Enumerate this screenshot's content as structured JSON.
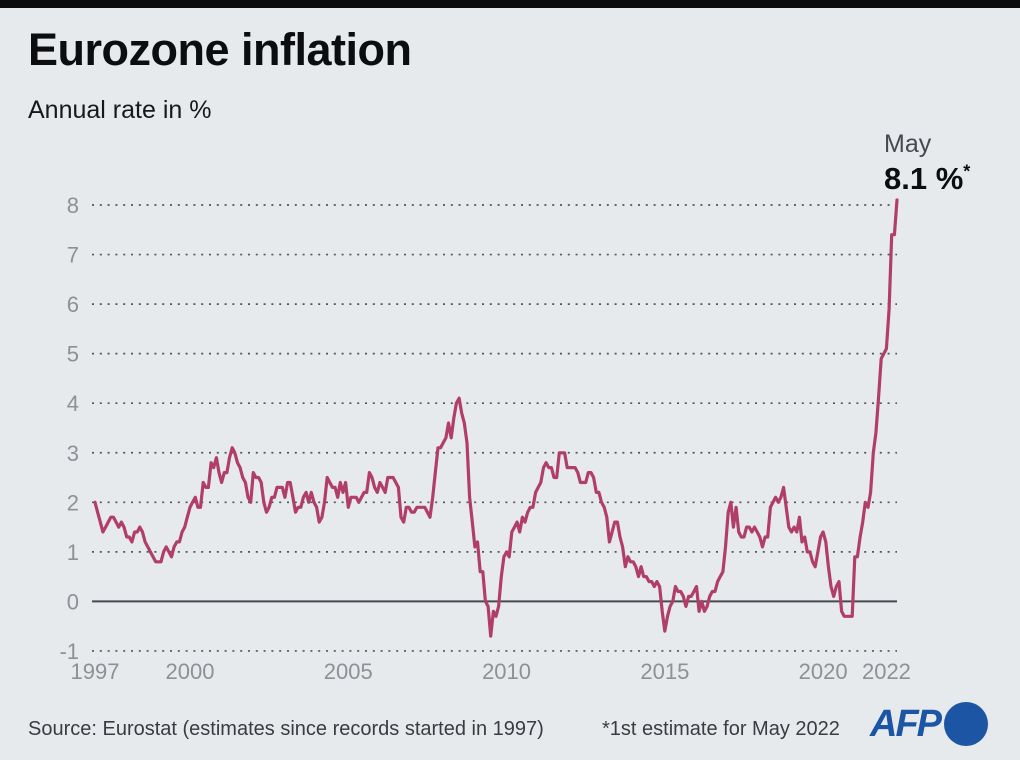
{
  "header": {
    "title": "Eurozone inflation",
    "subtitle": "Annual rate in %"
  },
  "annotation": {
    "month": "May",
    "value": "8.1 %",
    "asterisk": "*"
  },
  "footer": {
    "source": "Source: Eurostat (estimates since records started in 1997)",
    "note": "*1st estimate for May 2022",
    "brand": "AFP"
  },
  "colors": {
    "background": "#e7eaed",
    "top_bar": "#0b0c0d",
    "line": "#b03e68",
    "grid": "#515458",
    "tick_labels": "#8d9195",
    "afp_blue": "#1c55a4"
  },
  "chart_data": {
    "type": "line",
    "title": "Eurozone inflation",
    "ylabel": "Annual rate in %",
    "frequency": "monthly",
    "start": "1997-01",
    "end": "2022-05",
    "x_tick_years": [
      1997,
      2000,
      2005,
      2010,
      2015,
      2020,
      2022
    ],
    "y_ticks": [
      -1,
      0,
      1,
      2,
      3,
      4,
      5,
      6,
      7,
      8
    ],
    "ylim": [
      -1.3,
      8.6
    ],
    "grid": "dotted-horizontal",
    "zero_line": true,
    "legend": "none",
    "line_color": "#b03e68",
    "peak_annotation": {
      "label": "May",
      "value": 8.1,
      "footnote": "*1st estimate for May 2022"
    },
    "series": [
      {
        "name": "Eurozone annual inflation rate (%)",
        "values": [
          2.0,
          1.8,
          1.6,
          1.4,
          1.5,
          1.6,
          1.7,
          1.7,
          1.6,
          1.5,
          1.6,
          1.5,
          1.3,
          1.3,
          1.2,
          1.4,
          1.4,
          1.5,
          1.4,
          1.2,
          1.1,
          1.0,
          0.9,
          0.8,
          0.8,
          0.8,
          1.0,
          1.1,
          1.0,
          0.9,
          1.1,
          1.2,
          1.2,
          1.4,
          1.5,
          1.7,
          1.9,
          2.0,
          2.1,
          1.9,
          1.9,
          2.4,
          2.3,
          2.3,
          2.8,
          2.7,
          2.9,
          2.6,
          2.4,
          2.6,
          2.6,
          2.9,
          3.1,
          3.0,
          2.8,
          2.7,
          2.5,
          2.4,
          2.1,
          2.0,
          2.6,
          2.5,
          2.5,
          2.4,
          2.0,
          1.8,
          1.9,
          2.1,
          2.1,
          2.3,
          2.3,
          2.3,
          2.1,
          2.4,
          2.4,
          2.1,
          1.8,
          1.9,
          1.9,
          2.1,
          2.2,
          2.0,
          2.2,
          2.0,
          1.9,
          1.6,
          1.7,
          2.0,
          2.5,
          2.4,
          2.3,
          2.3,
          2.1,
          2.4,
          2.2,
          2.4,
          1.9,
          2.1,
          2.1,
          2.1,
          2.0,
          2.1,
          2.2,
          2.2,
          2.6,
          2.5,
          2.3,
          2.2,
          2.4,
          2.3,
          2.2,
          2.5,
          2.5,
          2.5,
          2.4,
          2.3,
          1.7,
          1.6,
          1.9,
          1.9,
          1.8,
          1.8,
          1.9,
          1.9,
          1.9,
          1.9,
          1.8,
          1.7,
          2.1,
          2.6,
          3.1,
          3.1,
          3.2,
          3.3,
          3.6,
          3.3,
          3.7,
          4.0,
          4.1,
          3.8,
          3.6,
          3.2,
          2.1,
          1.6,
          1.1,
          1.2,
          0.6,
          0.6,
          0.0,
          -0.1,
          -0.7,
          -0.2,
          -0.3,
          -0.1,
          0.5,
          0.9,
          1.0,
          0.9,
          1.4,
          1.5,
          1.6,
          1.4,
          1.7,
          1.6,
          1.8,
          1.9,
          1.9,
          2.2,
          2.3,
          2.4,
          2.7,
          2.8,
          2.7,
          2.7,
          2.5,
          2.5,
          3.0,
          3.0,
          3.0,
          2.7,
          2.7,
          2.7,
          2.7,
          2.6,
          2.4,
          2.4,
          2.4,
          2.6,
          2.6,
          2.5,
          2.2,
          2.2,
          2.0,
          1.9,
          1.7,
          1.2,
          1.4,
          1.6,
          1.6,
          1.3,
          1.1,
          0.7,
          0.9,
          0.8,
          0.8,
          0.7,
          0.5,
          0.7,
          0.5,
          0.5,
          0.4,
          0.4,
          0.3,
          0.4,
          0.3,
          -0.2,
          -0.6,
          -0.3,
          -0.1,
          0.0,
          0.3,
          0.2,
          0.2,
          0.1,
          -0.1,
          0.1,
          0.1,
          0.2,
          0.3,
          -0.2,
          0.0,
          -0.2,
          -0.1,
          0.1,
          0.2,
          0.2,
          0.4,
          0.5,
          0.6,
          1.1,
          1.8,
          2.0,
          1.5,
          1.9,
          1.4,
          1.3,
          1.3,
          1.5,
          1.5,
          1.4,
          1.5,
          1.4,
          1.3,
          1.1,
          1.3,
          1.3,
          1.9,
          2.0,
          2.1,
          2.0,
          2.1,
          2.3,
          1.9,
          1.5,
          1.4,
          1.5,
          1.4,
          1.7,
          1.2,
          1.3,
          1.0,
          1.0,
          0.8,
          0.7,
          1.0,
          1.3,
          1.4,
          1.2,
          0.7,
          0.3,
          0.1,
          0.3,
          0.4,
          -0.2,
          -0.3,
          -0.3,
          -0.3,
          -0.3,
          0.9,
          0.9,
          1.3,
          1.6,
          2.0,
          1.9,
          2.2,
          3.0,
          3.4,
          4.1,
          4.9,
          5.0,
          5.1,
          5.9,
          7.4,
          7.4,
          8.1
        ]
      }
    ]
  }
}
